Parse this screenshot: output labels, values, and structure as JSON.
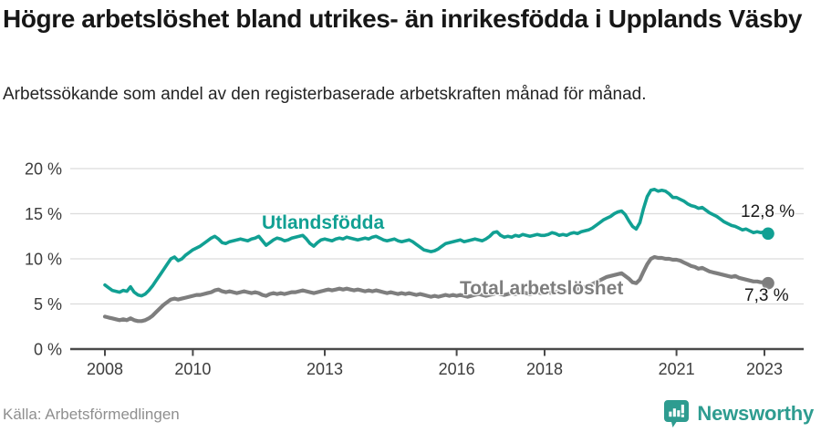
{
  "header": {
    "title": "Högre arbetslöshet bland utrikes- än inrikesfödda i Upplands Väsby",
    "subtitle": "Arbetssökande som andel av den registerbaserade arbetskraften månad för månad."
  },
  "footer": {
    "source": "Källa: Arbetsförmedlingen",
    "brand": "Newsworthy"
  },
  "colors": {
    "foreign_born_line": "#11a093",
    "total_line": "#7e7e7e",
    "grid": "#dcdcdc",
    "axis": "#4a4a4a",
    "brand_teal": "#2e9c90"
  },
  "chart_data": {
    "type": "line",
    "title": "Högre arbetslöshet bland utrikes- än inrikesfödda i Upplands Väsby",
    "subtitle": "Arbetssökande som andel av den registerbaserade arbetskraften månad för månad.",
    "unit": "%",
    "x_start_year": 2008,
    "x_start_month": 1,
    "x_step_months": 1,
    "x_end_label": "feb 2023",
    "ylim": [
      0,
      20
    ],
    "grid": "horizontal",
    "legend": "inline-labels",
    "grid_color": "#dcdcdc",
    "axis_color": "#4a4a4a",
    "y_ticks": [
      {
        "value": 0,
        "label": "0 %"
      },
      {
        "value": 5,
        "label": "5 %"
      },
      {
        "value": 10,
        "label": "10 %"
      },
      {
        "value": 15,
        "label": "15 %"
      },
      {
        "value": 20,
        "label": "20 %"
      }
    ],
    "x_ticks": [
      {
        "value": 2008,
        "label": "2008"
      },
      {
        "value": 2010,
        "label": "2010"
      },
      {
        "value": 2013,
        "label": "2013"
      },
      {
        "value": 2016,
        "label": "2016"
      },
      {
        "value": 2018,
        "label": "2018"
      },
      {
        "value": 2021,
        "label": "2021"
      },
      {
        "value": 2023,
        "label": "2023"
      }
    ],
    "series": [
      {
        "name": "Utlandsfödda",
        "color": "#11a093",
        "end_value": 12.8,
        "end_label": "12,8 %",
        "values": [
          7.1,
          6.8,
          6.5,
          6.4,
          6.3,
          6.5,
          6.4,
          6.9,
          6.3,
          6.0,
          5.9,
          6.1,
          6.5,
          7.0,
          7.6,
          8.2,
          8.8,
          9.4,
          10.0,
          10.2,
          9.8,
          10.0,
          10.4,
          10.7,
          11.0,
          11.2,
          11.4,
          11.7,
          12.0,
          12.3,
          12.5,
          12.2,
          11.8,
          11.7,
          11.9,
          12.0,
          12.1,
          12.2,
          12.1,
          12.0,
          12.2,
          12.3,
          12.5,
          12.0,
          11.5,
          11.8,
          12.1,
          12.3,
          12.2,
          12.0,
          12.1,
          12.3,
          12.4,
          12.5,
          12.6,
          12.2,
          11.7,
          11.4,
          11.8,
          12.1,
          12.2,
          12.1,
          12.0,
          12.2,
          12.3,
          12.2,
          12.4,
          12.3,
          12.2,
          12.1,
          12.2,
          12.3,
          12.2,
          12.4,
          12.5,
          12.3,
          12.1,
          12.0,
          12.1,
          12.2,
          12.0,
          11.9,
          12.0,
          12.1,
          11.9,
          11.6,
          11.3,
          11.0,
          10.9,
          10.8,
          10.9,
          11.1,
          11.4,
          11.7,
          11.8,
          11.9,
          12.0,
          12.1,
          11.9,
          12.0,
          12.1,
          12.2,
          12.1,
          12.0,
          12.2,
          12.5,
          12.9,
          13.0,
          12.6,
          12.4,
          12.5,
          12.4,
          12.6,
          12.5,
          12.7,
          12.6,
          12.5,
          12.6,
          12.7,
          12.6,
          12.6,
          12.7,
          12.9,
          12.8,
          12.6,
          12.7,
          12.6,
          12.8,
          12.9,
          12.8,
          13.0,
          13.1,
          13.2,
          13.4,
          13.7,
          14.0,
          14.3,
          14.5,
          14.7,
          15.0,
          15.2,
          15.3,
          14.9,
          14.2,
          13.6,
          13.3,
          14.0,
          15.6,
          16.9,
          17.6,
          17.7,
          17.5,
          17.6,
          17.5,
          17.2,
          16.8,
          16.8,
          16.6,
          16.4,
          16.1,
          15.9,
          15.8,
          15.6,
          15.7,
          15.4,
          15.1,
          14.9,
          14.7,
          14.4,
          14.1,
          13.9,
          13.7,
          13.6,
          13.4,
          13.2,
          13.3,
          13.1,
          12.9,
          13.0,
          12.9,
          13.0,
          12.8
        ]
      },
      {
        "name": "Total arbetslöshet",
        "color": "#7e7e7e",
        "end_value": 7.3,
        "end_label": "7,3 %",
        "values": [
          3.6,
          3.5,
          3.4,
          3.3,
          3.2,
          3.3,
          3.2,
          3.4,
          3.2,
          3.1,
          3.1,
          3.2,
          3.4,
          3.7,
          4.1,
          4.5,
          4.9,
          5.2,
          5.5,
          5.6,
          5.5,
          5.6,
          5.7,
          5.8,
          5.9,
          6.0,
          6.0,
          6.1,
          6.2,
          6.3,
          6.5,
          6.6,
          6.4,
          6.3,
          6.4,
          6.3,
          6.2,
          6.3,
          6.4,
          6.3,
          6.2,
          6.3,
          6.2,
          6.0,
          5.9,
          6.1,
          6.2,
          6.1,
          6.2,
          6.1,
          6.2,
          6.3,
          6.3,
          6.4,
          6.5,
          6.4,
          6.3,
          6.2,
          6.3,
          6.4,
          6.5,
          6.6,
          6.5,
          6.6,
          6.7,
          6.6,
          6.7,
          6.6,
          6.5,
          6.6,
          6.5,
          6.4,
          6.5,
          6.4,
          6.5,
          6.4,
          6.3,
          6.2,
          6.3,
          6.2,
          6.1,
          6.2,
          6.1,
          6.2,
          6.1,
          6.0,
          6.1,
          6.0,
          5.9,
          5.8,
          5.9,
          5.8,
          5.9,
          6.0,
          5.9,
          6.0,
          5.9,
          6.0,
          5.9,
          5.8,
          5.9,
          6.0,
          6.1,
          6.0,
          5.9,
          6.0,
          6.1,
          6.2,
          6.1,
          6.0,
          6.1,
          6.2,
          6.1,
          6.2,
          6.3,
          6.2,
          6.1,
          6.2,
          6.3,
          6.2,
          6.2,
          6.3,
          6.2,
          6.3,
          6.4,
          6.3,
          6.4,
          6.5,
          6.6,
          6.7,
          6.8,
          6.9,
          7.0,
          7.2,
          7.4,
          7.6,
          7.8,
          8.0,
          8.1,
          8.2,
          8.3,
          8.4,
          8.1,
          7.8,
          7.4,
          7.3,
          7.7,
          8.6,
          9.4,
          10.0,
          10.2,
          10.1,
          10.1,
          10.0,
          10.0,
          9.9,
          9.9,
          9.8,
          9.6,
          9.4,
          9.2,
          9.1,
          8.9,
          9.0,
          8.8,
          8.6,
          8.5,
          8.4,
          8.3,
          8.2,
          8.1,
          8.0,
          8.1,
          7.9,
          7.8,
          7.7,
          7.6,
          7.5,
          7.5,
          7.4,
          7.4,
          7.3
        ]
      }
    ]
  }
}
